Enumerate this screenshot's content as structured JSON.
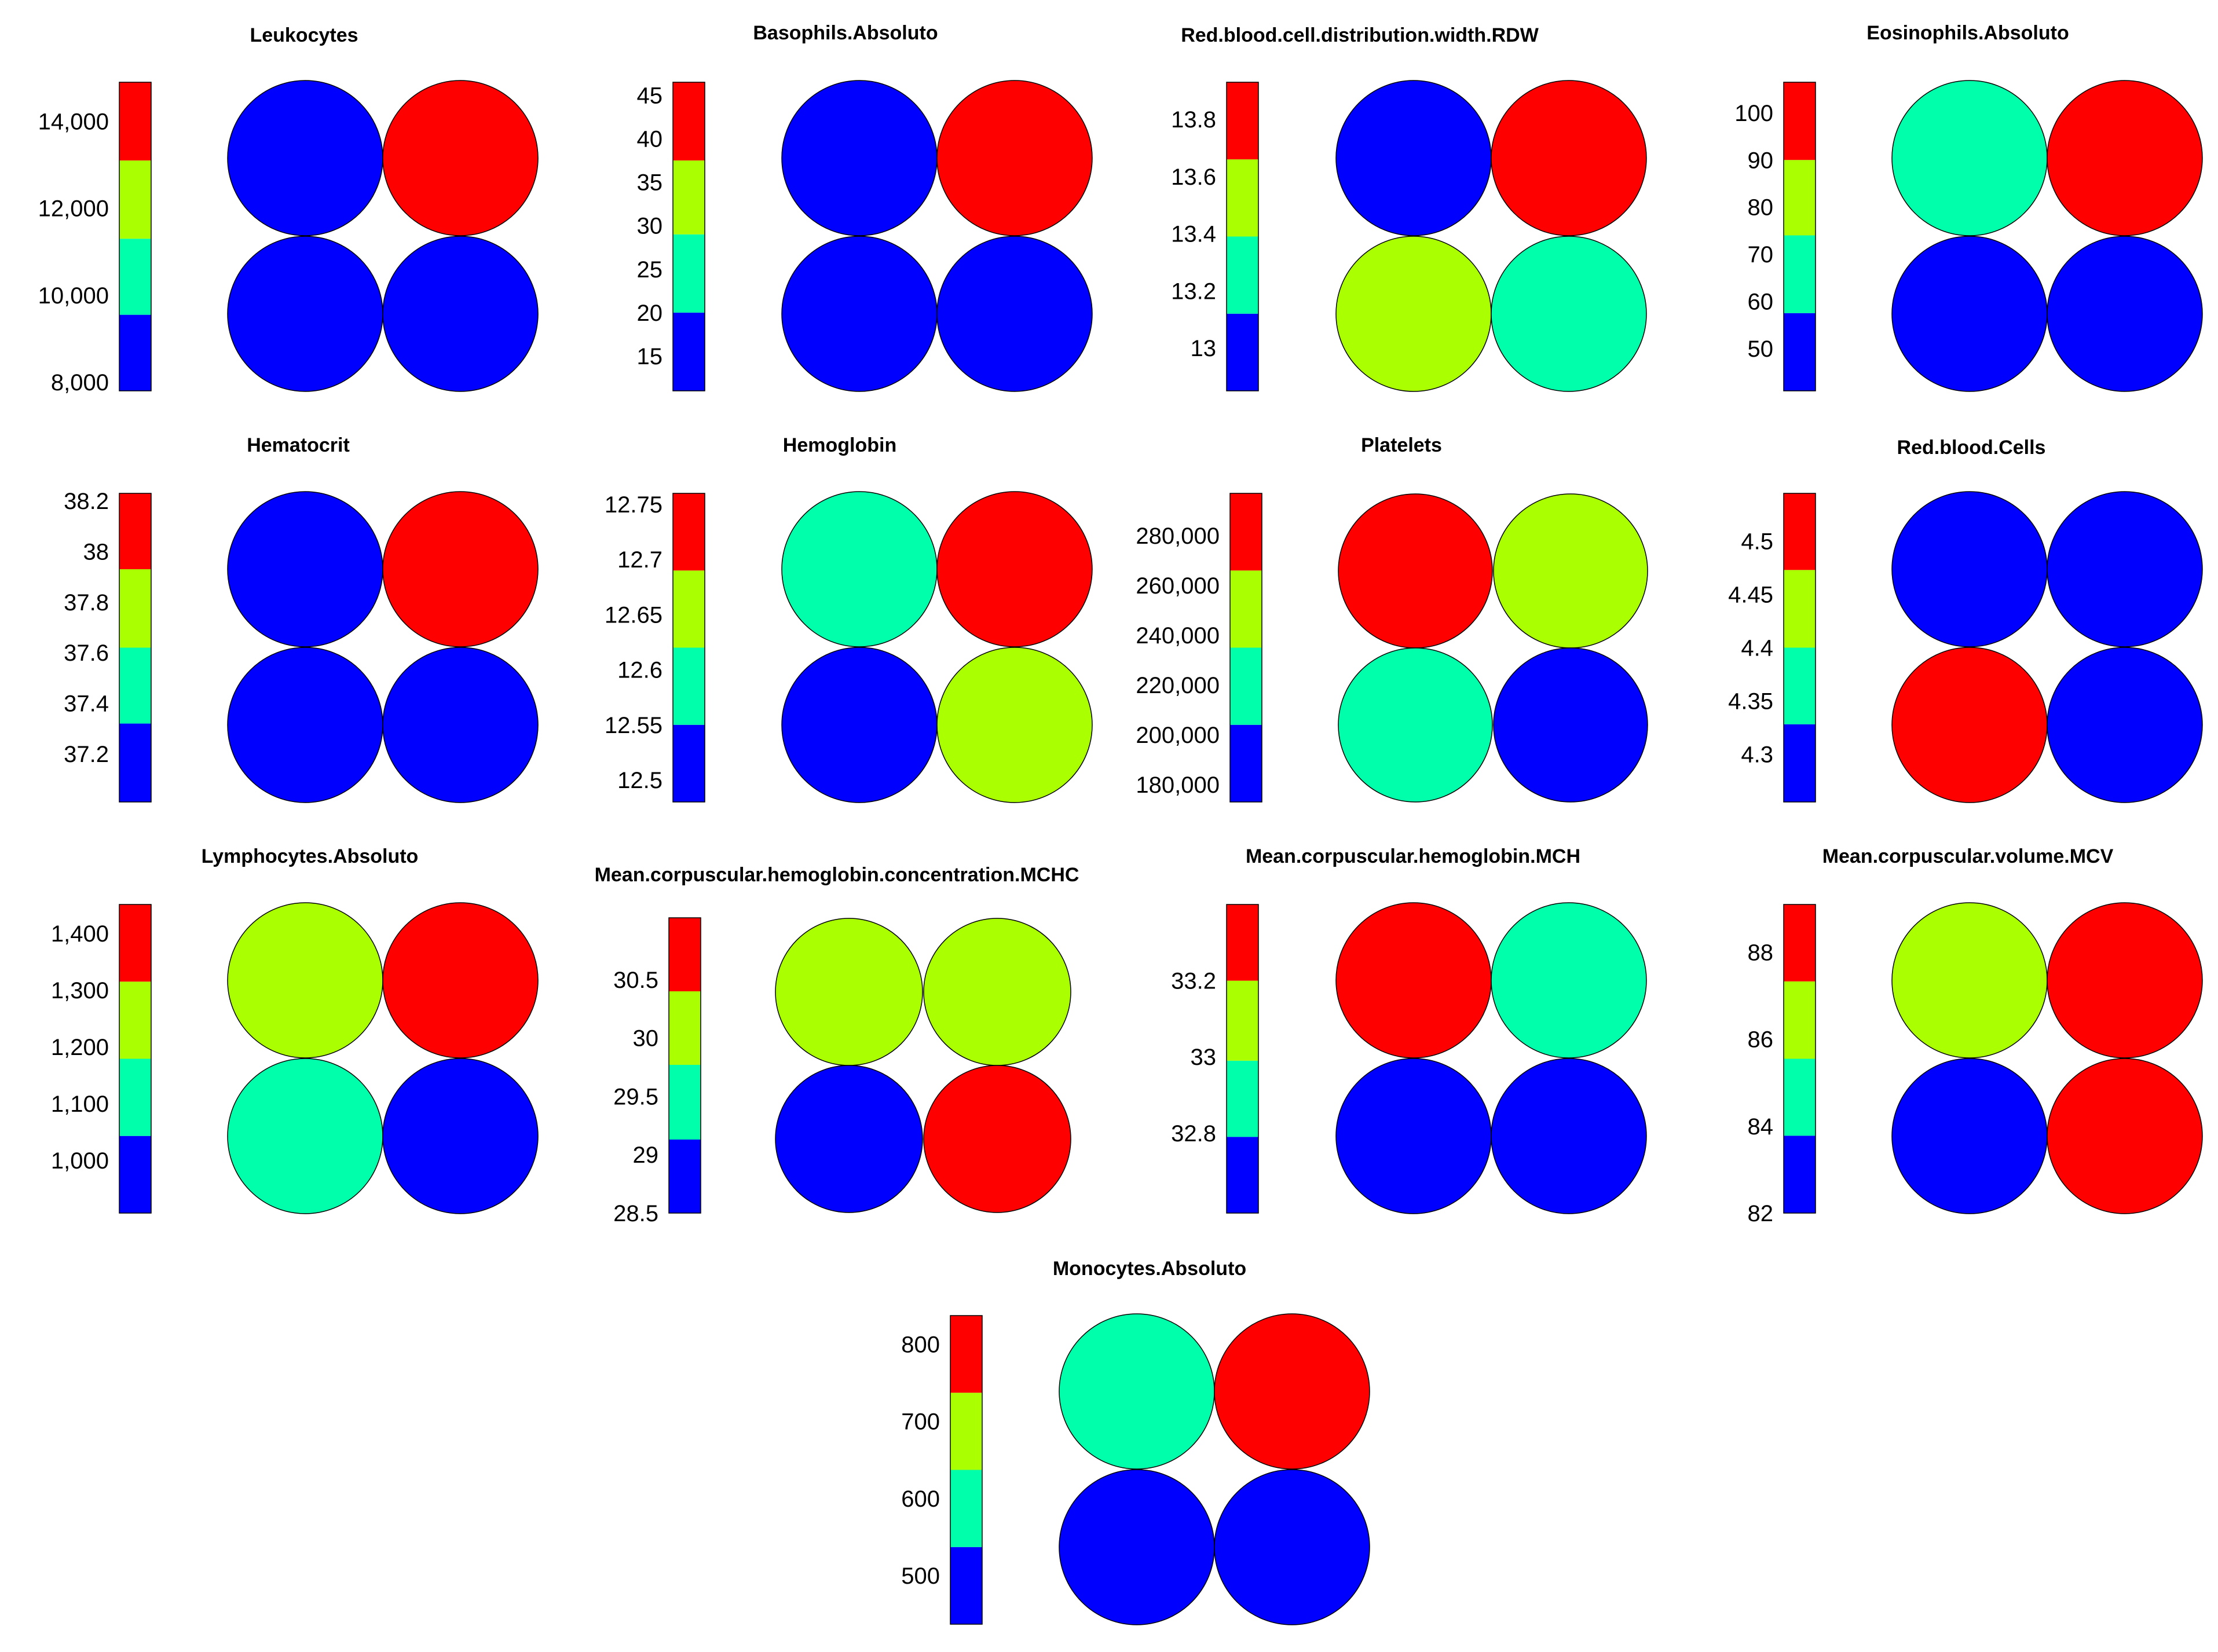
{
  "palette": {
    "blue": "#0000ff",
    "cyan": "#00ffaa",
    "green": "#aaff00",
    "red": "#ff0000",
    "order_low_to_high": [
      "blue",
      "cyan",
      "green",
      "red"
    ]
  },
  "chart_data": [
    {
      "type": "heatmap",
      "title": "Leukocytes",
      "colorbar_ticks": [
        "8,000",
        "10,000",
        "12,000",
        "14,000"
      ],
      "colorbar_range": [
        7800,
        14900
      ],
      "bin_edges": [
        7800,
        9550,
        11300,
        13100,
        14900
      ],
      "grid": [
        [
          "blue",
          "red"
        ],
        [
          "blue",
          "blue"
        ]
      ]
    },
    {
      "type": "heatmap",
      "title": "Basophils.Absoluto",
      "colorbar_ticks": [
        "15",
        "20",
        "25",
        "30",
        "35",
        "40",
        "45"
      ],
      "colorbar_range": [
        11,
        46.5
      ],
      "bin_edges": [
        11,
        20,
        29,
        37.5,
        46.5
      ],
      "grid": [
        [
          "blue",
          "red"
        ],
        [
          "blue",
          "blue"
        ]
      ]
    },
    {
      "type": "heatmap",
      "title": "Red.blood.cell.distribution.width.RDW",
      "colorbar_ticks": [
        "13",
        "13.2",
        "13.4",
        "13.6",
        "13.8"
      ],
      "colorbar_range": [
        12.85,
        13.93
      ],
      "bin_edges": [
        12.85,
        13.12,
        13.39,
        13.66,
        13.93
      ],
      "grid": [
        [
          "blue",
          "red"
        ],
        [
          "green",
          "cyan"
        ]
      ]
    },
    {
      "type": "heatmap",
      "title": "Eosinophils.Absoluto",
      "colorbar_ticks": [
        "50",
        "60",
        "70",
        "80",
        "90",
        "100"
      ],
      "colorbar_range": [
        41,
        106.5
      ],
      "bin_edges": [
        41,
        57.5,
        74,
        90,
        106.5
      ],
      "grid": [
        [
          "cyan",
          "red"
        ],
        [
          "blue",
          "blue"
        ]
      ]
    },
    {
      "type": "heatmap",
      "title": "Hematocrit",
      "colorbar_ticks": [
        "37.2",
        "37.4",
        "37.6",
        "37.8",
        "38",
        "38.2"
      ],
      "colorbar_range": [
        37.01,
        38.23
      ],
      "bin_edges": [
        37.01,
        37.32,
        37.62,
        37.93,
        38.23
      ],
      "grid": [
        [
          "blue",
          "red"
        ],
        [
          "blue",
          "blue"
        ]
      ]
    },
    {
      "type": "heatmap",
      "title": "Hemoglobin",
      "colorbar_ticks": [
        "12.5",
        "12.55",
        "12.6",
        "12.65",
        "12.7",
        "12.75"
      ],
      "colorbar_range": [
        12.48,
        12.76
      ],
      "bin_edges": [
        12.48,
        12.55,
        12.62,
        12.69,
        12.76
      ],
      "grid": [
        [
          "cyan",
          "red"
        ],
        [
          "blue",
          "green"
        ]
      ]
    },
    {
      "type": "heatmap",
      "title": "Platelets",
      "colorbar_ticks": [
        "180,000",
        "200,000",
        "220,000",
        "240,000",
        "260,000",
        "280,000"
      ],
      "colorbar_range": [
        173000,
        297000
      ],
      "bin_edges": [
        173000,
        204000,
        235000,
        266000,
        297000
      ],
      "grid": [
        [
          "red",
          "green"
        ],
        [
          "cyan",
          "blue"
        ]
      ]
    },
    {
      "type": "heatmap",
      "title": "Red.blood.Cells",
      "colorbar_ticks": [
        "4.3",
        "4.35",
        "4.4",
        "4.45",
        "4.5"
      ],
      "colorbar_range": [
        4.255,
        4.545
      ],
      "bin_edges": [
        4.255,
        4.328,
        4.4,
        4.473,
        4.545
      ],
      "grid": [
        [
          "blue",
          "blue"
        ],
        [
          "red",
          "blue"
        ]
      ]
    },
    {
      "type": "heatmap",
      "title": "Lymphocytes.Absoluto",
      "colorbar_ticks": [
        "1,000",
        "1,100",
        "1,200",
        "1,300",
        "1,400"
      ],
      "colorbar_range": [
        907,
        1451
      ],
      "bin_edges": [
        907,
        1043,
        1179,
        1315,
        1451
      ],
      "grid": [
        [
          "green",
          "red"
        ],
        [
          "cyan",
          "blue"
        ]
      ]
    },
    {
      "type": "heatmap",
      "title": "Mean.corpuscular.hemoglobin.concentration.MCHC",
      "colorbar_ticks": [
        "28.5",
        "29",
        "29.5",
        "30",
        "30.5"
      ],
      "colorbar_range": [
        28.5,
        31.03
      ],
      "bin_edges": [
        28.5,
        29.13,
        29.77,
        30.4,
        31.03
      ],
      "grid": [
        [
          "green",
          "green"
        ],
        [
          "blue",
          "red"
        ]
      ]
    },
    {
      "type": "heatmap",
      "title": "Mean.corpuscular.hemoglobin.MCH",
      "colorbar_ticks": [
        "32.8",
        "33",
        "33.2"
      ],
      "colorbar_range": [
        32.59,
        33.4
      ],
      "bin_edges": [
        32.59,
        32.79,
        32.99,
        33.2,
        33.4
      ],
      "grid": [
        [
          "red",
          "cyan"
        ],
        [
          "blue",
          "blue"
        ]
      ]
    },
    {
      "type": "heatmap",
      "title": "Mean.corpuscular.volume.MCV",
      "colorbar_ticks": [
        "82",
        "84",
        "86",
        "88"
      ],
      "colorbar_range": [
        82,
        89.1
      ],
      "bin_edges": [
        82,
        83.78,
        85.55,
        87.33,
        89.1
      ],
      "grid": [
        [
          "green",
          "red"
        ],
        [
          "blue",
          "red"
        ]
      ]
    },
    {
      "type": "heatmap",
      "title": "Monocytes.Absoluto",
      "colorbar_ticks": [
        "500",
        "600",
        "700",
        "800"
      ],
      "colorbar_range": [
        437,
        837
      ],
      "bin_edges": [
        437,
        537,
        637,
        737,
        837
      ],
      "grid": [
        [
          "cyan",
          "red"
        ],
        [
          "blue",
          "blue"
        ]
      ]
    }
  ]
}
